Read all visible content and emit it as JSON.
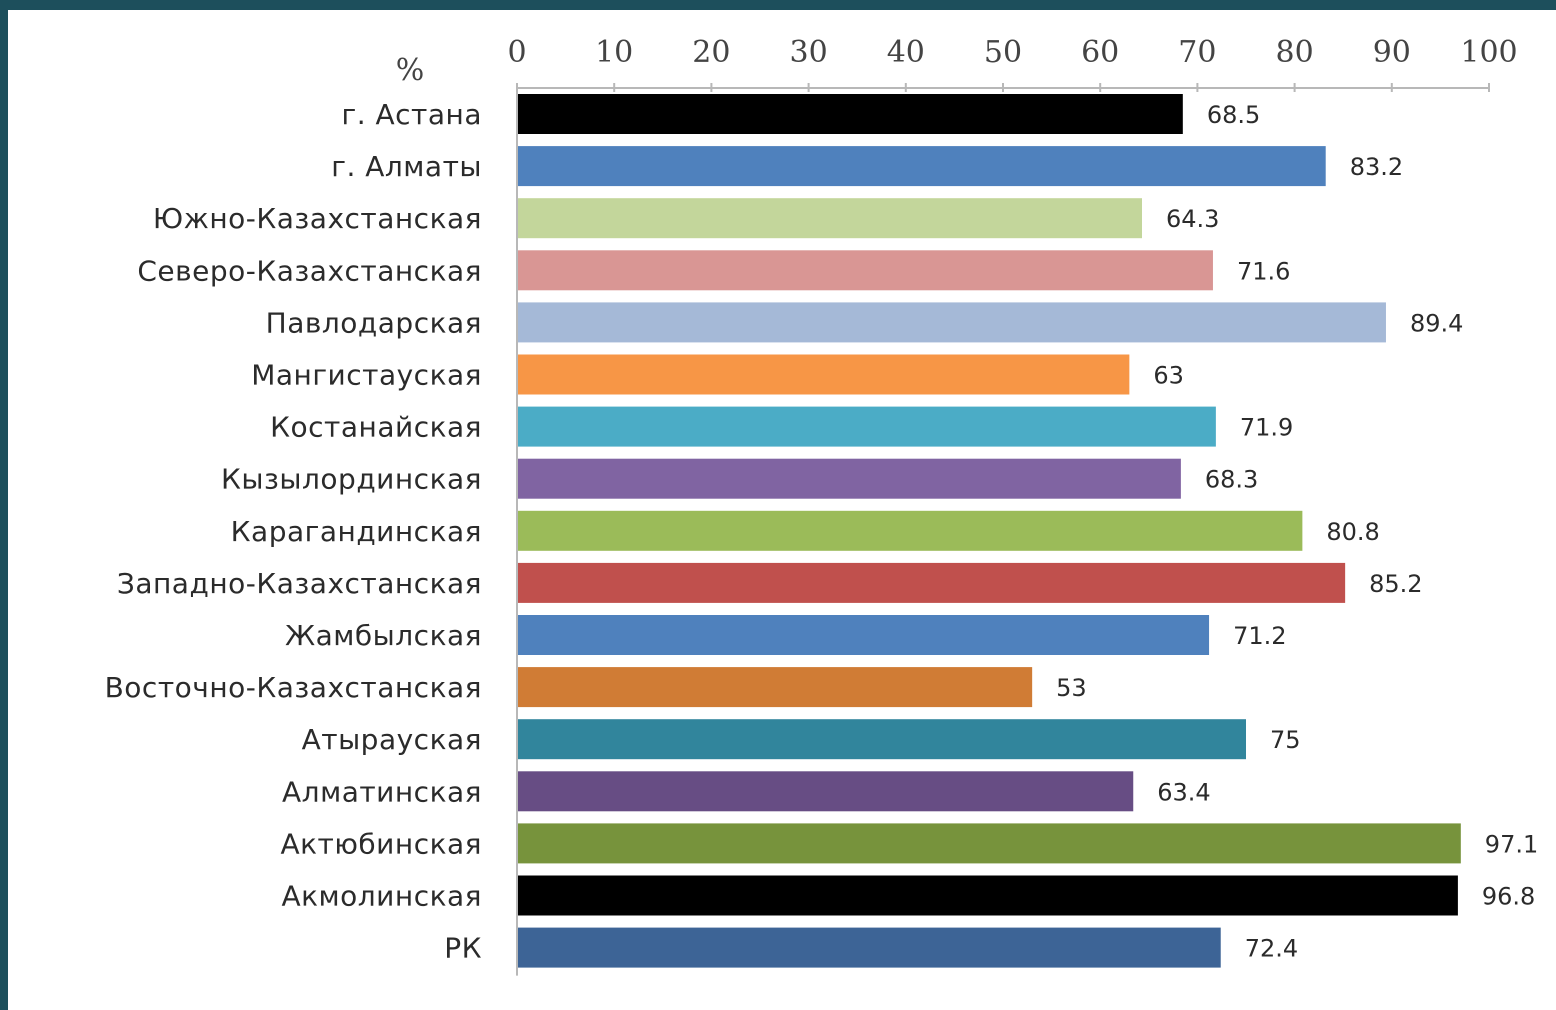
{
  "chart_data": {
    "type": "bar",
    "orientation": "horizontal",
    "unit_label": "%",
    "xlim": [
      0,
      100
    ],
    "x_ticks": [
      0,
      10,
      20,
      30,
      40,
      50,
      60,
      70,
      80,
      90,
      100
    ],
    "x_axis_position": "top",
    "grid": false,
    "categories": [
      "г. Астана",
      "г. Алматы",
      "Южно-Казахстанская",
      "Северо-Казахстанская",
      "Павлодарская",
      "Мангистауская",
      "Костанайская",
      "Кызылординская",
      "Карагандинская",
      "Западно-Казахстанская",
      "Жамбылская",
      "Восточно-Казахстанская",
      "Атырауская",
      "Алматинская",
      "Актюбинская",
      "Акмолинская",
      "РК"
    ],
    "values": [
      68.5,
      83.2,
      64.3,
      71.6,
      89.4,
      63,
      71.9,
      68.3,
      80.8,
      85.2,
      71.2,
      53,
      75,
      63.4,
      97.1,
      96.8,
      72.4
    ],
    "value_labels": [
      "68.5",
      "83.2",
      "64.3",
      "71.6",
      "89.4",
      "63",
      "71.9",
      "68.3",
      "80.8",
      "85.2",
      "71.2",
      "53",
      "75",
      "63.4",
      "97.1",
      "96.8",
      "72.4"
    ],
    "bar_colors": [
      "#000000",
      "#4f81bd",
      "#c3d69b",
      "#d99694",
      "#a5b9d7",
      "#f79646",
      "#4bacc6",
      "#8064a2",
      "#9bbb59",
      "#c0504d",
      "#4f81bd",
      "#d07c35",
      "#31859c",
      "#674d84",
      "#77933c",
      "#000000",
      "#3d6496"
    ]
  }
}
